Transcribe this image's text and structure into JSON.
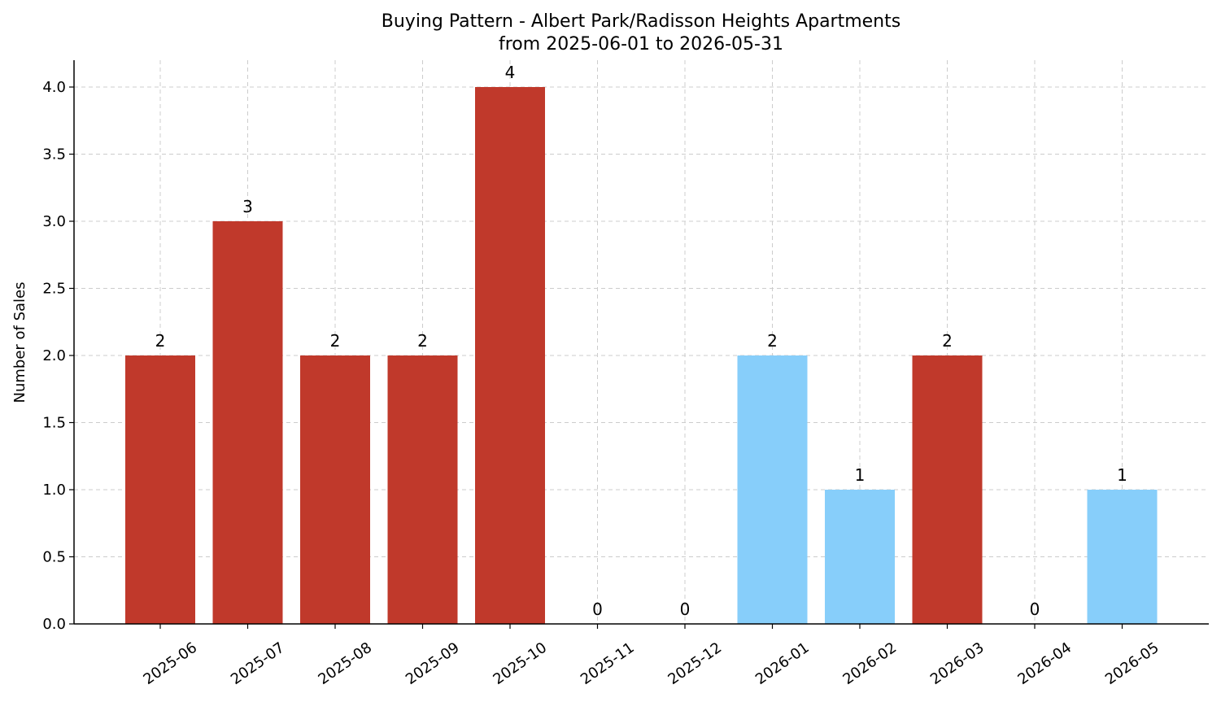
{
  "chart_data": {
    "type": "bar",
    "title": "Buying Pattern - Albert Park/Radisson Heights Apartments",
    "subtitle": "from 2025-06-01 to 2026-05-31",
    "xlabel": "",
    "ylabel": "Number of Sales",
    "categories": [
      "2025-06",
      "2025-07",
      "2025-08",
      "2025-09",
      "2025-10",
      "2025-11",
      "2025-12",
      "2026-01",
      "2026-02",
      "2026-03",
      "2026-04",
      "2026-05"
    ],
    "values": [
      2,
      3,
      2,
      2,
      4,
      0,
      0,
      2,
      1,
      2,
      0,
      1
    ],
    "value_labels": [
      "2",
      "3",
      "2",
      "2",
      "4",
      "0",
      "0",
      "2",
      "1",
      "2",
      "0",
      "1"
    ],
    "bar_colors": [
      "#c0392b",
      "#c0392b",
      "#c0392b",
      "#c0392b",
      "#c0392b",
      "#c0392b",
      "#c0392b",
      "#87cefa",
      "#87cefa",
      "#c0392b",
      "#c0392b",
      "#87cefa"
    ],
    "colors": {
      "red": "#c0392b",
      "light_blue": "#87cefa"
    },
    "ylim": [
      0,
      4.2
    ],
    "yticks": [
      0.0,
      0.5,
      1.0,
      1.5,
      2.0,
      2.5,
      3.0,
      3.5,
      4.0
    ],
    "ytick_labels": [
      "0.0",
      "0.5",
      "1.0",
      "1.5",
      "2.0",
      "2.5",
      "3.0",
      "3.5",
      "4.0"
    ],
    "grid": true,
    "legend": false
  }
}
